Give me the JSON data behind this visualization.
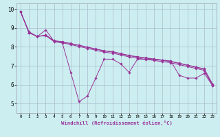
{
  "xlabel": "Windchill (Refroidissement éolien,°C)",
  "xlim": [
    -0.5,
    23.5
  ],
  "ylim": [
    4.5,
    10.3
  ],
  "xticks": [
    0,
    1,
    2,
    3,
    4,
    5,
    6,
    7,
    8,
    9,
    10,
    11,
    12,
    13,
    14,
    15,
    16,
    17,
    18,
    19,
    20,
    21,
    22,
    23
  ],
  "yticks": [
    5,
    6,
    7,
    8,
    9,
    10
  ],
  "bg_color": "#cceef0",
  "grid_color": "#aabbcc",
  "line_color": "#993399",
  "series": [
    [
      9.85,
      8.8,
      8.55,
      8.9,
      8.3,
      8.2,
      6.65,
      5.1,
      5.4,
      6.35,
      7.35,
      7.35,
      7.1,
      6.65,
      7.35,
      7.35,
      7.35,
      7.3,
      7.25,
      6.5,
      6.35,
      6.35,
      6.6,
      5.95
    ],
    [
      9.85,
      8.75,
      8.55,
      8.6,
      8.28,
      8.22,
      8.12,
      8.02,
      7.92,
      7.82,
      7.72,
      7.67,
      7.57,
      7.47,
      7.4,
      7.34,
      7.28,
      7.22,
      7.16,
      7.06,
      6.96,
      6.86,
      6.76,
      5.95
    ],
    [
      9.85,
      8.75,
      8.55,
      8.62,
      8.32,
      8.26,
      8.17,
      8.08,
      7.98,
      7.88,
      7.78,
      7.73,
      7.63,
      7.53,
      7.46,
      7.4,
      7.34,
      7.28,
      7.22,
      7.12,
      7.02,
      6.92,
      6.82,
      6.0
    ],
    [
      9.85,
      8.75,
      8.55,
      8.63,
      8.33,
      8.27,
      8.18,
      8.09,
      7.99,
      7.89,
      7.8,
      7.75,
      7.65,
      7.55,
      7.48,
      7.42,
      7.36,
      7.3,
      7.24,
      7.14,
      7.04,
      6.94,
      6.84,
      6.04
    ]
  ]
}
